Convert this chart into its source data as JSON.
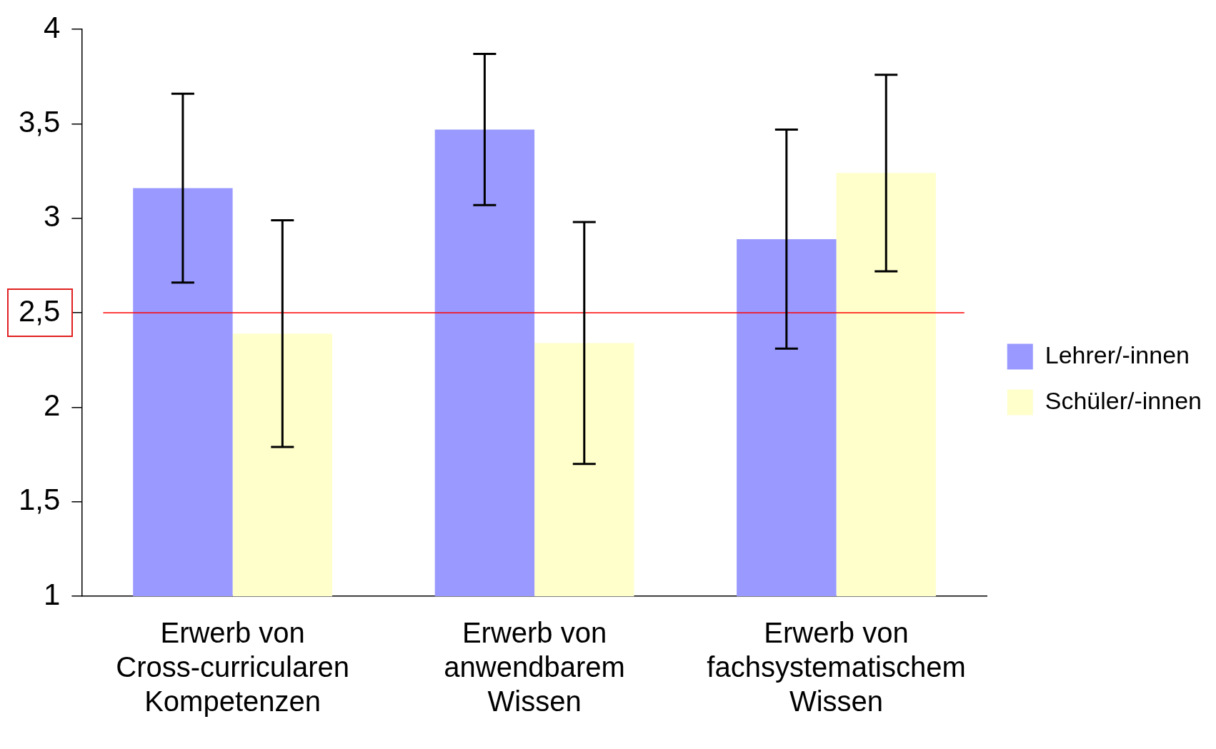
{
  "chart_data": {
    "type": "bar",
    "categories": [
      "Erwerb von Cross-curricularen Kompetenzen",
      "Erwerb von anwendbarem Wissen",
      "Erwerb von fachsystematischem Wissen"
    ],
    "series": [
      {
        "name": "Lehrer/-innen",
        "color": "#9999ff",
        "values": [
          3.16,
          3.47,
          2.89
        ],
        "errors": [
          0.5,
          0.4,
          0.58
        ]
      },
      {
        "name": "Schüler/-innen",
        "color": "#ffffcc",
        "values": [
          2.39,
          2.34,
          3.24
        ],
        "errors": [
          0.6,
          0.64,
          0.52
        ]
      }
    ],
    "ylim": [
      1,
      4
    ],
    "yticks": [
      1,
      {
        "value": 1.5,
        "label": "1,5"
      },
      2,
      {
        "value": 2.5,
        "label": "2,5"
      },
      3,
      {
        "value": 3.5,
        "label": "3,5"
      },
      4
    ],
    "ref_lines": [
      {
        "axis": "y",
        "value": 2.5,
        "color": "#ff0000"
      }
    ],
    "grid": false,
    "legend": "right"
  }
}
